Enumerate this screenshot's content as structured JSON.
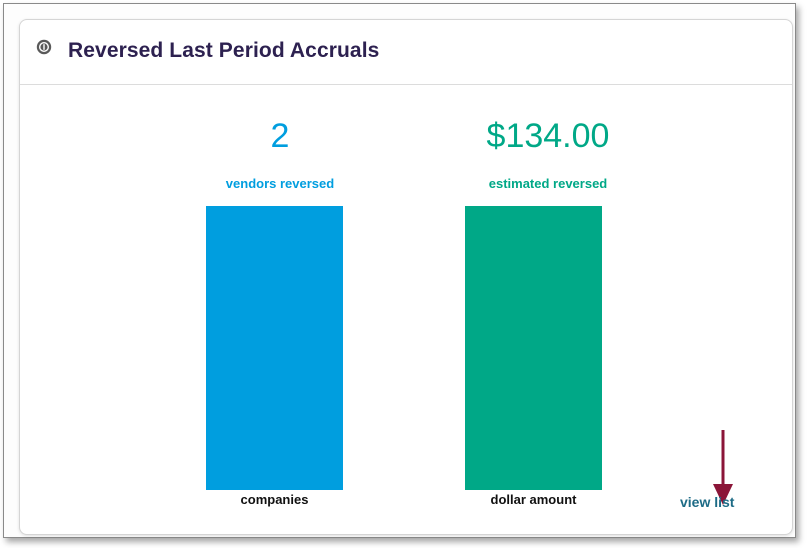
{
  "card": {
    "title": "Reversed Last Period Accruals",
    "icon": "coin-icon"
  },
  "metrics": [
    {
      "value": "2",
      "label": "vendors reversed",
      "axis_label": "companies",
      "color": "#009edf"
    },
    {
      "value": "$134.00",
      "label": "estimated reversed",
      "axis_label": "dollar amount",
      "color": "#00a887"
    }
  ],
  "link": {
    "view_list": "view list"
  },
  "colors": {
    "title": "#2d2150",
    "link": "#1d6b86",
    "annotation_arrow": "#8b1538"
  }
}
